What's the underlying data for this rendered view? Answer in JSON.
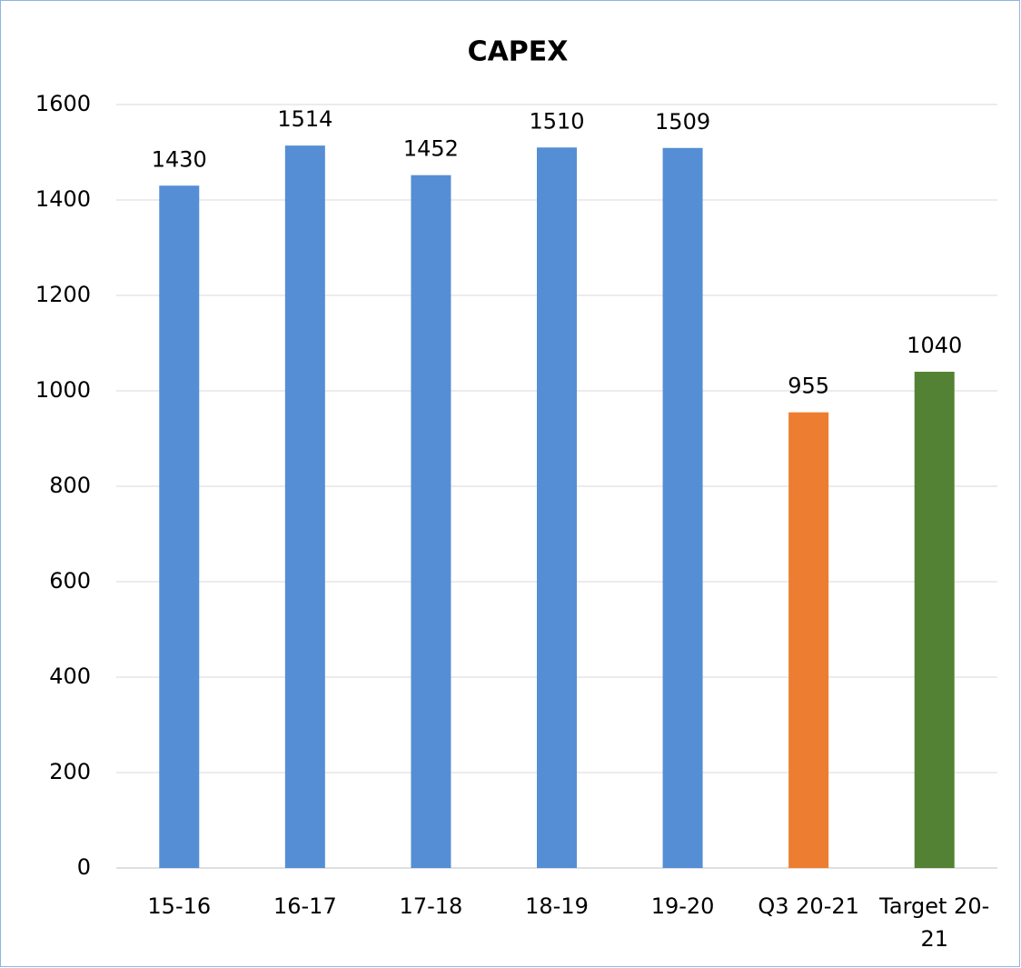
{
  "chart_data": {
    "type": "bar",
    "title": "CAPEX",
    "categories": [
      "15-16",
      "16-17",
      "17-18",
      "18-19",
      "19-20",
      "Q3 20-21",
      "Target 20-21"
    ],
    "values": [
      1430,
      1514,
      1452,
      1510,
      1509,
      955,
      1040
    ],
    "colors": [
      "#558ed5",
      "#558ed5",
      "#558ed5",
      "#558ed5",
      "#558ed5",
      "#ed7d31",
      "#548235"
    ],
    "ylim": [
      0,
      1600
    ],
    "yticks": [
      0,
      200,
      400,
      600,
      800,
      1000,
      1200,
      1400,
      1600
    ],
    "grid": true
  }
}
